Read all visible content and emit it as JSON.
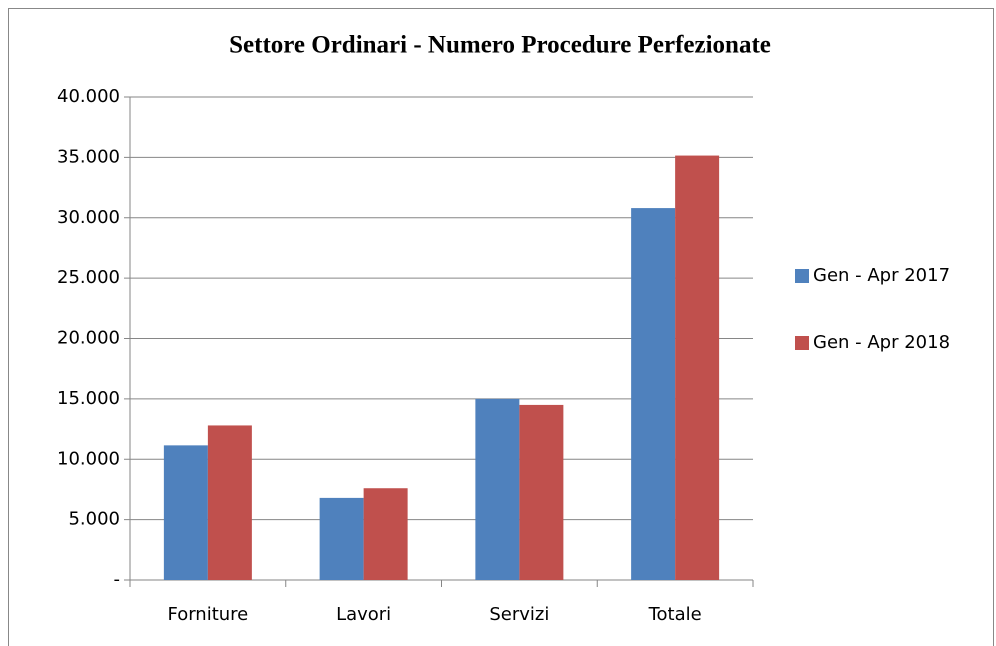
{
  "chart_data": {
    "type": "bar",
    "title": "Settore Ordinari - Numero Procedure Perfezionate",
    "categories": [
      "Forniture",
      "Lavori",
      "Servizi",
      "Totale"
    ],
    "series": [
      {
        "name": "Gen - Apr 2017",
        "color": "#4f81bd",
        "values": [
          11150,
          6800,
          15000,
          30800
        ]
      },
      {
        "name": "Gen - Apr 2018",
        "color": "#c0504d",
        "values": [
          12800,
          7600,
          14500,
          35150
        ]
      }
    ],
    "ylim": [
      0,
      40000
    ],
    "yticks": [
      {
        "value": 0,
        "label": "-"
      },
      {
        "value": 5000,
        "label": "5.000"
      },
      {
        "value": 10000,
        "label": "10.000"
      },
      {
        "value": 15000,
        "label": "15.000"
      },
      {
        "value": 20000,
        "label": "20.000"
      },
      {
        "value": 25000,
        "label": "25.000"
      },
      {
        "value": 30000,
        "label": "30.000"
      },
      {
        "value": 35000,
        "label": "35.000"
      },
      {
        "value": 40000,
        "label": "40.000"
      }
    ],
    "grid": true,
    "legend": "right"
  }
}
